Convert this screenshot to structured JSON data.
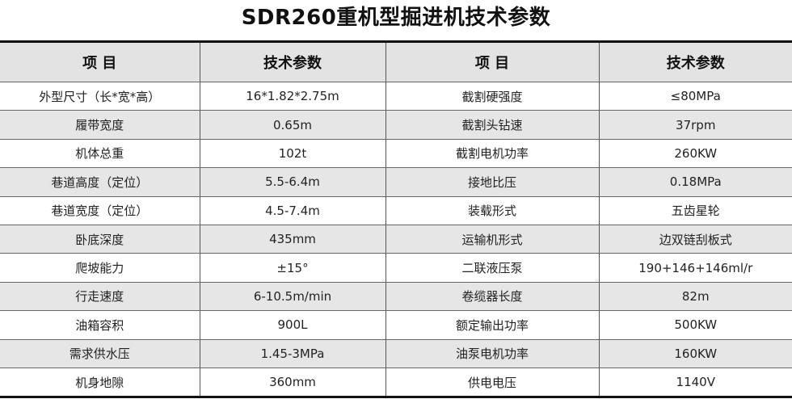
{
  "title": "SDR260重机型掘进机技术参数",
  "headers": [
    "项 目",
    "技术参数",
    "项 目",
    "技术参数"
  ],
  "rows": [
    [
      "外型尺寸（长*宽*高）",
      "16*1.82*2.75m",
      "截割硬强度",
      "≤80MPa"
    ],
    [
      "履带宽度",
      "0.65m",
      "截割头钻速",
      "37rpm"
    ],
    [
      "机体总重",
      "102t",
      "截割电机功率",
      "260KW"
    ],
    [
      "巷道高度（定位）",
      "5.5-6.4m",
      "接地比压",
      "0.18MPa"
    ],
    [
      "巷道宽度（定位）",
      "4.5-7.4m",
      "装载形式",
      "五齿星轮"
    ],
    [
      "卧底深度",
      "435mm",
      "运输机形式",
      "边双链刮板式"
    ],
    [
      "爬坡能力",
      "±15°",
      "二联液压泵",
      "190+146+146ml/r"
    ],
    [
      "行走速度",
      "6-10.5m/min",
      "卷缆器长度",
      "82m"
    ],
    [
      "油箱容积",
      "900L",
      "额定输出功率",
      "500KW"
    ],
    [
      "需求供水压",
      "1.45-3MPa",
      "油泵电机功率",
      "160KW"
    ],
    [
      "机身地隙",
      "360mm",
      "供电电压",
      "1140V"
    ]
  ]
}
